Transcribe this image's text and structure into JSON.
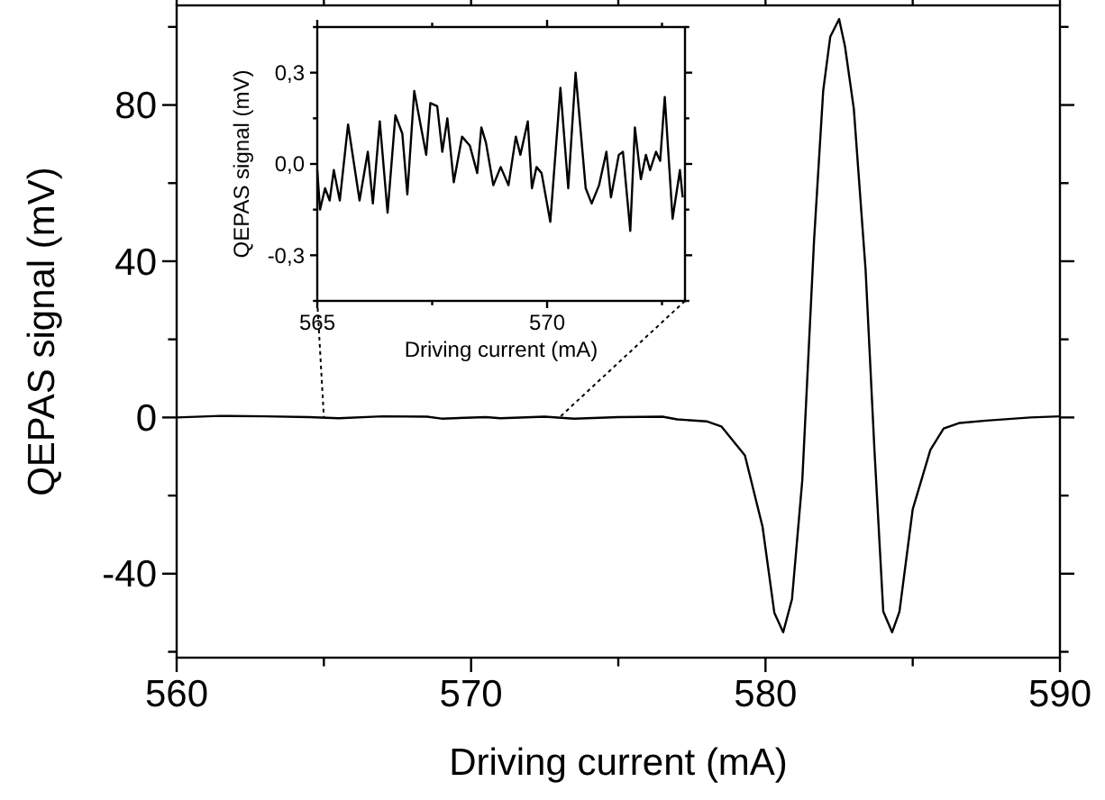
{
  "chart_data": [
    {
      "type": "line",
      "xlabel": "Driving current (mA)",
      "ylabel": "QEPAS signal (mV)",
      "xlim": [
        560,
        590
      ],
      "ylim": [
        -61.5,
        105.5
      ],
      "xticks": [
        560,
        {
          "value": 565,
          "label": null
        },
        570,
        {
          "value": 575,
          "label": null
        },
        580,
        {
          "value": 585,
          "label": null
        },
        590
      ],
      "yticks": [
        {
          "value": -60,
          "label": null
        },
        -40,
        {
          "value": -20,
          "label": null
        },
        0,
        {
          "value": 20,
          "label": null
        },
        40,
        {
          "value": 60,
          "label": null
        },
        80,
        {
          "value": 100,
          "label": null
        }
      ],
      "grid": false,
      "marker": "none",
      "line_style": "solid",
      "series": [
        {
          "color": "#000000",
          "x": [
            560,
            561.5,
            563,
            564.5,
            565.5,
            567,
            568.5,
            569,
            570.5,
            571,
            572.5,
            573.5,
            575,
            576.5,
            577,
            578,
            578.5,
            579.3,
            579.9,
            580.3,
            580.6,
            580.9,
            581.25,
            581.65,
            581.96,
            582.2,
            582.5,
            582.7,
            583.0,
            583.4,
            583.7,
            584.0,
            584.3,
            584.55,
            585.0,
            585.6,
            586.05,
            586.6,
            587.5,
            589,
            590
          ],
          "values": [
            0,
            0.4,
            0.3,
            0.1,
            -0.2,
            0.3,
            0.2,
            -0.3,
            0.1,
            -0.2,
            0.2,
            -0.3,
            0.1,
            0.2,
            -0.5,
            -1.0,
            -2.3,
            -9.7,
            -28,
            -50,
            -55,
            -46.5,
            -16,
            45.5,
            83.7,
            97.5,
            102,
            95,
            79,
            37.7,
            -8.3,
            -49.7,
            -55,
            -49.7,
            -23.5,
            -8.3,
            -2.8,
            -1.4,
            -0.8,
            0,
            0.3
          ]
        }
      ]
    },
    {
      "type": "line",
      "xlabel": "Driving current (mA)",
      "ylabel": "QEPAS signal (mV)",
      "xlim": [
        565,
        573
      ],
      "ylim": [
        -0.45,
        0.45
      ],
      "xticks": [
        565,
        {
          "value": 567.5,
          "label": null
        },
        570,
        {
          "value": 572.5,
          "label": null
        }
      ],
      "yticks": [
        {
          "value": -0.45,
          "label": null
        },
        {
          "value": -0.3,
          "label": "-0,3"
        },
        {
          "value": -0.15,
          "label": null
        },
        {
          "value": 0,
          "label": "0,0"
        },
        {
          "value": 0.15,
          "label": null
        },
        {
          "value": 0.3,
          "label": "0,3"
        },
        {
          "value": 0.45,
          "label": null
        }
      ],
      "grid": false,
      "marker": "none",
      "line_style": "solid",
      "series": [
        {
          "color": "#000000",
          "x": [
            565.0,
            565.06,
            565.17,
            565.27,
            565.36,
            565.49,
            565.67,
            565.92,
            566.1,
            566.21,
            566.36,
            566.53,
            566.7,
            566.85,
            566.96,
            567.11,
            567.37,
            567.46,
            567.61,
            567.72,
            567.83,
            567.97,
            568.15,
            568.32,
            568.48,
            568.57,
            568.67,
            568.83,
            568.99,
            569.16,
            569.32,
            569.42,
            569.58,
            569.67,
            569.77,
            569.88,
            570.07,
            570.29,
            570.46,
            570.62,
            570.84,
            570.97,
            571.13,
            571.29,
            571.39,
            571.56,
            571.65,
            571.81,
            571.91,
            572.04,
            572.15,
            572.24,
            572.37,
            572.46,
            572.56,
            572.73,
            572.89,
            572.95
          ],
          "values": [
            -0.02,
            -0.15,
            -0.08,
            -0.12,
            -0.02,
            -0.12,
            0.13,
            -0.12,
            0.04,
            -0.13,
            0.14,
            -0.16,
            0.16,
            0.1,
            -0.1,
            0.24,
            0.03,
            0.2,
            0.19,
            0.04,
            0.15,
            -0.06,
            0.09,
            0.06,
            -0.03,
            0.12,
            0.07,
            -0.07,
            -0.01,
            -0.07,
            0.09,
            0.03,
            0.14,
            -0.08,
            -0.01,
            -0.03,
            -0.19,
            0.25,
            -0.08,
            0.3,
            -0.08,
            -0.13,
            -0.07,
            0.04,
            -0.11,
            0.03,
            0.04,
            -0.22,
            0.12,
            -0.05,
            0.03,
            -0.02,
            0.04,
            0.01,
            0.22,
            -0.18,
            -0.02,
            -0.11
          ]
        }
      ]
    }
  ]
}
